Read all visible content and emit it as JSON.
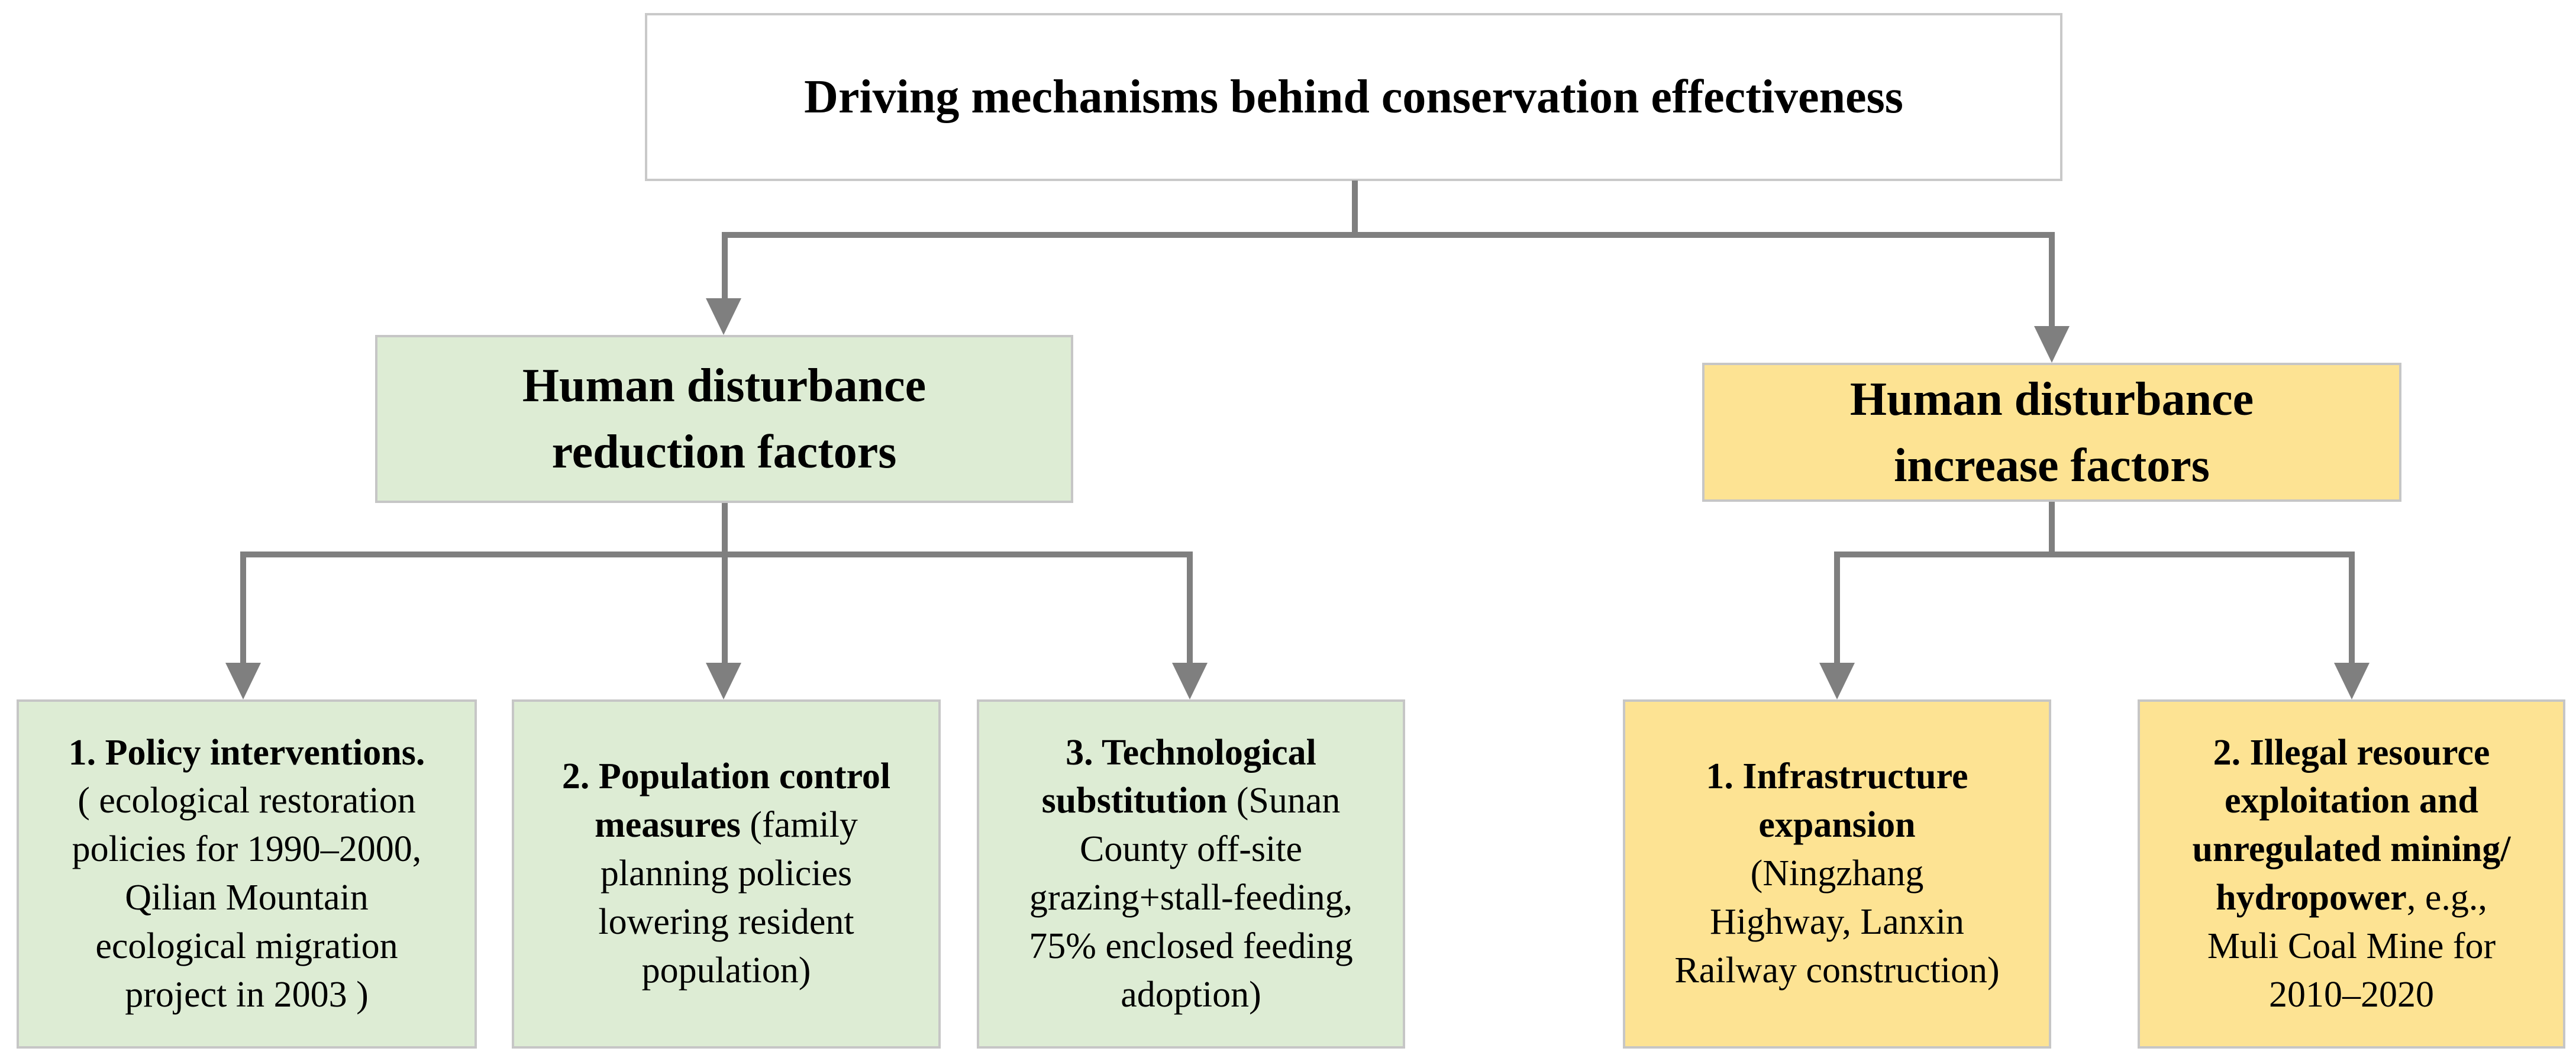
{
  "title": "Driving mechanisms behind conservation effectiveness",
  "colors": {
    "green_fill": "#ddecd4",
    "yellow_fill": "#fde393",
    "connector_gray": "#7f7f7f",
    "box_border_gray": "#c6c6c6",
    "title_border_gray": "#c9c9c9",
    "text_ink": "#000000"
  },
  "level2": {
    "reduction": {
      "lines": [
        "Human disturbance",
        "reduction factors"
      ]
    },
    "increase": {
      "lines": [
        "Human disturbance",
        "increase factors"
      ]
    }
  },
  "level3": {
    "policy": {
      "lines": [
        [
          {
            "t": "1. Policy interventions.",
            "b": 1
          }
        ],
        [
          {
            "t": "( ecological restoration",
            "b": 0
          }
        ],
        [
          {
            "t": "policies for 1990–2000,",
            "b": 0
          }
        ],
        [
          {
            "t": "Qilian Mountain",
            "b": 0
          }
        ],
        [
          {
            "t": "ecological migration",
            "b": 0
          }
        ],
        [
          {
            "t": "project in 2003 )",
            "b": 0
          }
        ]
      ]
    },
    "population": {
      "lines": [
        [
          {
            "t": "2. Population control",
            "b": 1
          }
        ],
        [
          {
            "t": "measures",
            "b": 1
          },
          {
            "t": " (family",
            "b": 0
          }
        ],
        [
          {
            "t": "planning policies",
            "b": 0
          }
        ],
        [
          {
            "t": "lowering resident",
            "b": 0
          }
        ],
        [
          {
            "t": "population)",
            "b": 0
          }
        ]
      ]
    },
    "technology": {
      "lines": [
        [
          {
            "t": "3. Technological",
            "b": 1
          }
        ],
        [
          {
            "t": "substitution",
            "b": 1
          },
          {
            "t": " (Sunan",
            "b": 0
          }
        ],
        [
          {
            "t": "County off-site",
            "b": 0
          }
        ],
        [
          {
            "t": "grazing+stall-feeding,",
            "b": 0
          }
        ],
        [
          {
            "t": "75% enclosed feeding",
            "b": 0
          }
        ],
        [
          {
            "t": "adoption)",
            "b": 0
          }
        ]
      ]
    },
    "infrastructure": {
      "lines": [
        [
          {
            "t": "1. Infrastructure",
            "b": 1
          }
        ],
        [
          {
            "t": "expansion",
            "b": 1
          }
        ],
        [
          {
            "t": "(Ningzhang",
            "b": 0
          }
        ],
        [
          {
            "t": "Highway, Lanxin",
            "b": 0
          }
        ],
        [
          {
            "t": "Railway construction)",
            "b": 0
          }
        ]
      ]
    },
    "illegal": {
      "lines": [
        [
          {
            "t": "2. Illegal resource",
            "b": 1
          }
        ],
        [
          {
            "t": "exploitation and",
            "b": 1
          }
        ],
        [
          {
            "t": "unregulated mining/",
            "b": 1
          }
        ],
        [
          {
            "t": "hydropower",
            "b": 1
          },
          {
            "t": ", e.g.,",
            "b": 0
          }
        ],
        [
          {
            "t": "Muli Coal Mine for",
            "b": 0
          }
        ],
        [
          {
            "t": "2010–2020",
            "b": 0
          }
        ]
      ]
    }
  }
}
